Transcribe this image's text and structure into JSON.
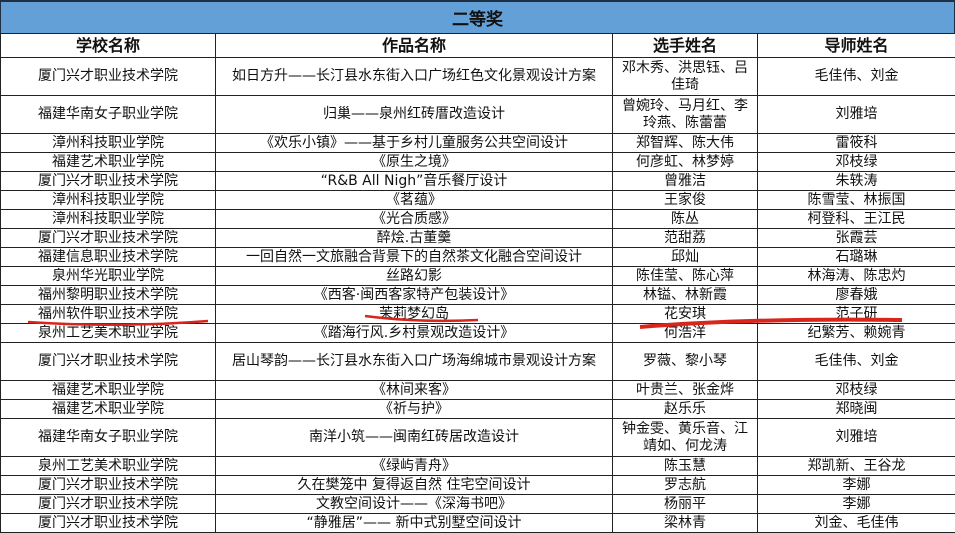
{
  "title": "二等奖",
  "headers": [
    "学校名称",
    "作品名称",
    "选手姓名",
    "导师姓名"
  ],
  "rows": [
    [
      "厦门兴才职业技术学院",
      "如日方升——长汀县水东街入口广场红色文化景观设计方案",
      "邓木秀、洪思钰、吕佳琦",
      "毛佳伟、刘金"
    ],
    [
      "福建华南女子职业学院",
      "归巢——泉州红砖厝改造设计",
      "曾婉玲、马月红、李玲燕、陈蕾蕾",
      "刘雅培"
    ],
    [
      "漳州科技职业学院",
      "《欢乐小镇》——基于乡村儿童服务公共空间设计",
      "郑智辉、陈大伟",
      "雷筱科"
    ],
    [
      "福建艺术职业学院",
      "《原生之境》",
      "何彦虹、林梦婷",
      "邓枝绿"
    ],
    [
      "厦门兴才职业技术学院",
      "“R&B All Nigh”音乐餐厅设计",
      "曾雅洁",
      "朱轶涛"
    ],
    [
      "漳州科技职业学院",
      "《茗蕴》",
      "王家俊",
      "陈雪莹、林振国"
    ],
    [
      "漳州科技职业学院",
      "《光合质感》",
      "陈丛",
      "柯登科、王江民"
    ],
    [
      "厦门兴才职业技术学院",
      "醉烩.古董羹",
      "范甜荔",
      "张霞芸"
    ],
    [
      "福建信息职业技术学院",
      "一回自然一文旅融合背景下的自然茶文化融合空间设计",
      "邱灿",
      "石璐琳"
    ],
    [
      "泉州华光职业学院",
      "丝路幻影",
      "陈佳莹、陈心萍",
      "林海涛、陈忠灼"
    ],
    [
      "福州黎明职业技术学院",
      "《西客·闽西客家特产包装设计》",
      "林镒、林新霞",
      "廖春娥"
    ],
    [
      "福州软件职业技术学院",
      "茉莉梦幻岛",
      "花安琪",
      "范子研"
    ],
    [
      "泉州工艺美术职业学院",
      "《踏海行风.乡村景观改造设计》",
      "何浩洋",
      "纪繁芳、赖婉青"
    ],
    [
      "厦门兴才职业技术学院",
      "居山琴韵——长汀县水东街入口广场海绵城市景观设计方案",
      "罗薇、黎小琴",
      "毛佳伟、刘金"
    ],
    [
      "福建艺术职业学院",
      "《林间来客》",
      "叶贵兰、张金烨",
      "邓枝绿"
    ],
    [
      "福建艺术职业学院",
      "《祈与护》",
      "赵乐乐",
      "郑晓闽"
    ],
    [
      "福建华南女子职业学院",
      "南洋小筑——闽南红砖居改造设计",
      "钟金雯、黄乐音、江靖如、何龙涛",
      "刘雅培"
    ],
    [
      "泉州工艺美术职业学院",
      "《绿屿青舟》",
      "陈玉慧",
      "郑凯新、王谷龙"
    ],
    [
      "厦门兴才职业技术学院",
      "久在樊笼中 复得返自然 住宅空间设计",
      "罗志航",
      "李娜"
    ],
    [
      "厦门兴才职业技术学院",
      "文教空间设计——《深海书吧》",
      "杨丽平",
      "李娜"
    ],
    [
      "厦门兴才职业技术学院",
      "“静雅居”—— 新中式别墅空间设计",
      "梁林青",
      "刘金、毛佳伟"
    ]
  ],
  "colors": {
    "title_bar": "#63a0d8",
    "annotation": "#d8261c"
  }
}
